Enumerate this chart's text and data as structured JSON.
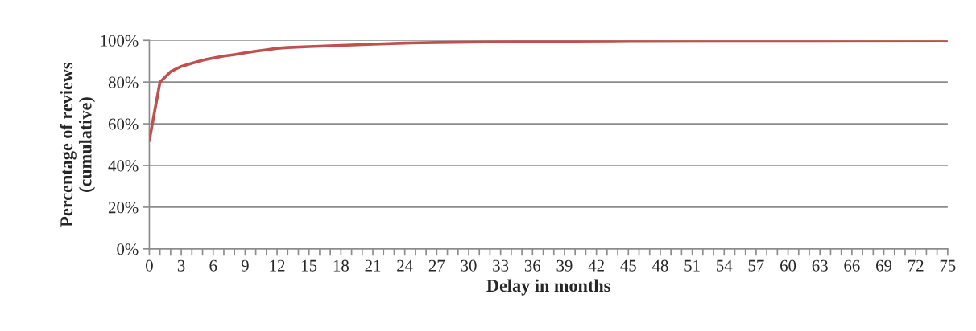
{
  "chart_data": {
    "type": "line",
    "xlabel": "Delay in months",
    "ylabel": "Percentage of reviews\n(cumulative)",
    "series": [
      {
        "color": "#c0504d",
        "x": [
          0,
          1,
          2,
          3,
          4,
          5,
          6,
          7,
          8,
          9,
          10,
          11,
          12,
          13,
          15,
          18,
          21,
          24,
          27,
          30,
          36,
          45,
          54,
          75
        ],
        "values": [
          52,
          80,
          85,
          87.5,
          89,
          90.5,
          91.5,
          92.5,
          93.2,
          94,
          94.8,
          95.5,
          96.2,
          96.6,
          97,
          97.6,
          98.2,
          98.7,
          99,
          99.2,
          99.5,
          99.8,
          99.9,
          100
        ]
      }
    ],
    "xlim": [
      0,
      75
    ],
    "xticks": [
      0,
      {
        "value": 1,
        "label": null
      },
      {
        "value": 2,
        "label": null
      },
      3,
      {
        "value": 4,
        "label": null
      },
      {
        "value": 5,
        "label": null
      },
      6,
      {
        "value": 7,
        "label": null
      },
      {
        "value": 8,
        "label": null
      },
      9,
      {
        "value": 10,
        "label": null
      },
      {
        "value": 11,
        "label": null
      },
      12,
      {
        "value": 13,
        "label": null
      },
      {
        "value": 14,
        "label": null
      },
      15,
      {
        "value": 16,
        "label": null
      },
      {
        "value": 17,
        "label": null
      },
      18,
      {
        "value": 19,
        "label": null
      },
      {
        "value": 20,
        "label": null
      },
      21,
      {
        "value": 22,
        "label": null
      },
      {
        "value": 23,
        "label": null
      },
      24,
      {
        "value": 25,
        "label": null
      },
      {
        "value": 26,
        "label": null
      },
      27,
      {
        "value": 28,
        "label": null
      },
      {
        "value": 29,
        "label": null
      },
      30,
      {
        "value": 31,
        "label": null
      },
      {
        "value": 32,
        "label": null
      },
      33,
      {
        "value": 34,
        "label": null
      },
      {
        "value": 35,
        "label": null
      },
      36,
      {
        "value": 37,
        "label": null
      },
      {
        "value": 38,
        "label": null
      },
      39,
      {
        "value": 40,
        "label": null
      },
      {
        "value": 41,
        "label": null
      },
      42,
      {
        "value": 43,
        "label": null
      },
      {
        "value": 44,
        "label": null
      },
      45,
      {
        "value": 46,
        "label": null
      },
      {
        "value": 47,
        "label": null
      },
      48,
      {
        "value": 49,
        "label": null
      },
      {
        "value": 50,
        "label": null
      },
      51,
      {
        "value": 52,
        "label": null
      },
      {
        "value": 53,
        "label": null
      },
      54,
      {
        "value": 55,
        "label": null
      },
      {
        "value": 56,
        "label": null
      },
      57,
      {
        "value": 58,
        "label": null
      },
      {
        "value": 59,
        "label": null
      },
      60,
      {
        "value": 61,
        "label": null
      },
      {
        "value": 62,
        "label": null
      },
      63,
      {
        "value": 64,
        "label": null
      },
      {
        "value": 65,
        "label": null
      },
      66,
      {
        "value": 67,
        "label": null
      },
      {
        "value": 68,
        "label": null
      },
      69,
      {
        "value": 70,
        "label": null
      },
      {
        "value": 71,
        "label": null
      },
      72,
      {
        "value": 73,
        "label": null
      },
      {
        "value": 74,
        "label": null
      },
      75
    ],
    "ylim": [
      0,
      100
    ],
    "yticks": [
      {
        "value": 0,
        "label": "0%"
      },
      {
        "value": 20,
        "label": "20%"
      },
      {
        "value": 40,
        "label": "40%"
      },
      {
        "value": 60,
        "label": "60%"
      },
      {
        "value": 80,
        "label": "80%"
      },
      {
        "value": 100,
        "label": "100%"
      }
    ],
    "grid": "y",
    "marker": "none",
    "line_style": "solid"
  }
}
